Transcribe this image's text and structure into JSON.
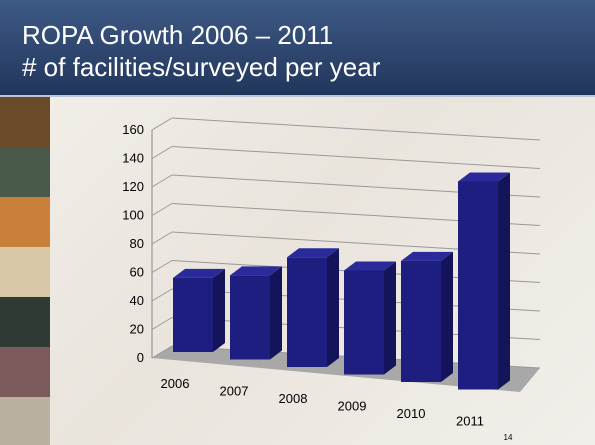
{
  "chart_data": {
    "type": "bar3d",
    "title": "ROPA Growth 2006 – 2011",
    "subtitle": "# of facilities/surveyed per year",
    "categories": [
      "2006",
      "2007",
      "2008",
      "2009",
      "2010",
      "2011"
    ],
    "values": [
      52,
      59,
      77,
      73,
      85,
      146
    ],
    "color": "#1e1e80",
    "ylim": [
      0,
      160
    ],
    "yticks": [
      0,
      20,
      40,
      60,
      80,
      100,
      120,
      140,
      160
    ],
    "grid": true
  },
  "slide": {
    "page_number": "14"
  }
}
